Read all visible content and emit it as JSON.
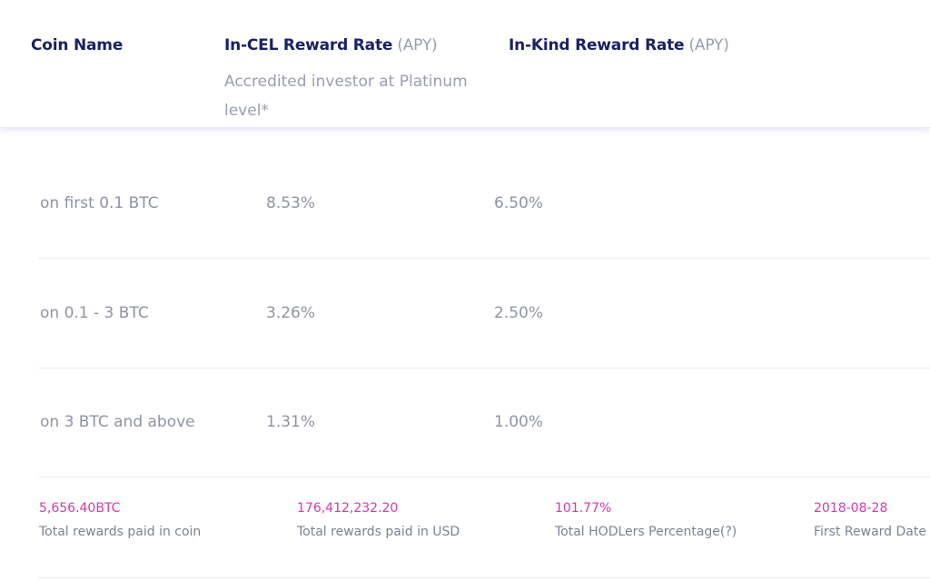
{
  "header": {
    "coin_name": "Coin Name",
    "in_cel": {
      "title": "In-CEL Reward Rate",
      "apy": "(APY)",
      "subtitle": "Accredited investor at Platinum level*"
    },
    "in_kind": {
      "title": "In-Kind Reward Rate",
      "apy": "(APY)"
    }
  },
  "rows": [
    {
      "tier": "on first 0.1 BTC",
      "in_cel": "8.53%",
      "in_kind": "6.50%"
    },
    {
      "tier": "on 0.1 - 3 BTC",
      "in_cel": "3.26%",
      "in_kind": "2.50%"
    },
    {
      "tier": "on 3 BTC and above",
      "in_cel": "1.31%",
      "in_kind": "1.00%"
    }
  ],
  "stats": [
    {
      "value": "5,656.40BTC",
      "label": "Total rewards paid in coin"
    },
    {
      "value": "176,412,232.20",
      "label": "Total rewards paid in USD"
    },
    {
      "value": "101.77%",
      "label": "Total HODLers Percentage(?)"
    },
    {
      "value": "2018-08-28",
      "label": "First Reward Date"
    }
  ],
  "colors": {
    "heading": "#1b2166",
    "muted": "#9a9db0",
    "accent": "#d63aa4"
  }
}
